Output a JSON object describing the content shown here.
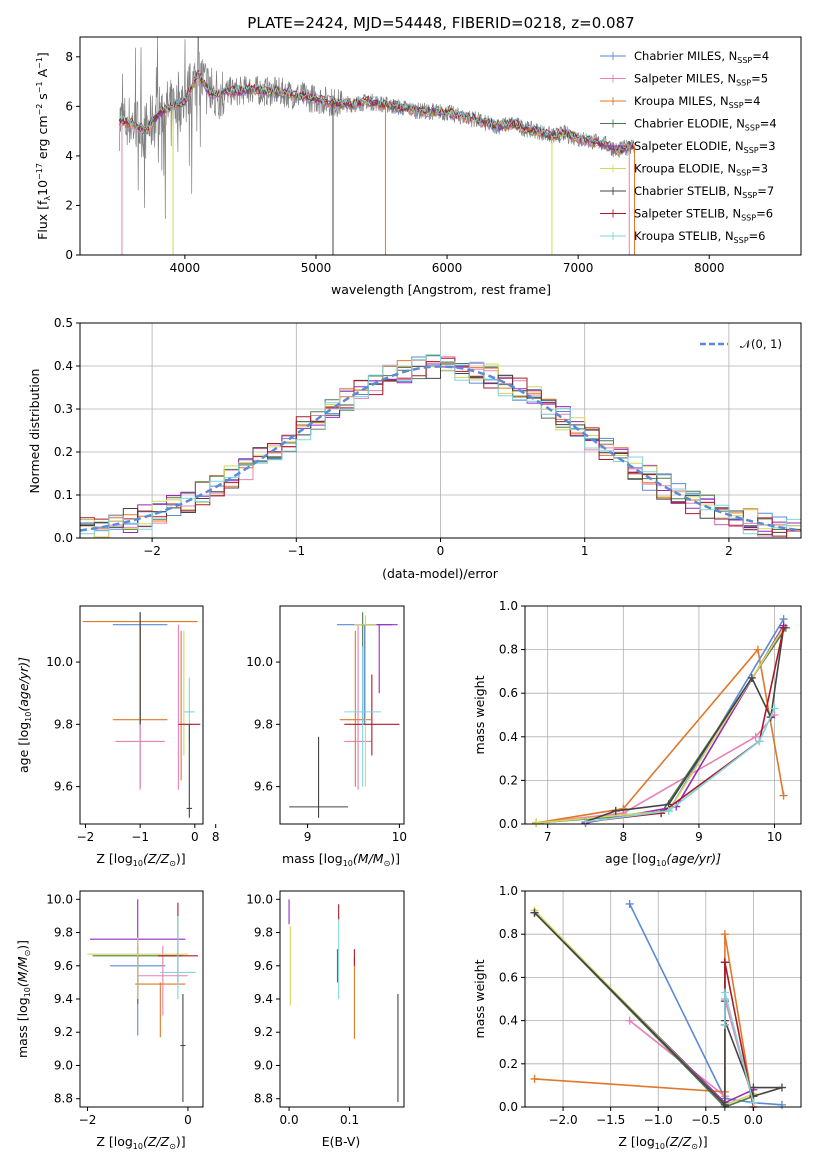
{
  "colors": [
    "#5b8ad6",
    "#e880b6",
    "#e0772a",
    "#4c7a4c",
    "#9a28c0",
    "#d4d85a",
    "#444444",
    "#a81c28",
    "#80d4dc"
  ],
  "chart_data": [
    {
      "id": "spectrum",
      "type": "line",
      "title": "PLATE=2424, MJD=54448, FIBERID=0218, z=0.087",
      "xlabel": "wavelength [Angstrom, rest frame]",
      "ylabel_main": "Flux [f",
      "ylabel_sub": "λ",
      "ylabel_rest": "10",
      "ylabel_exp": "−17",
      "ylabel_unit1": " erg cm",
      "ylabel_exp2": "−2",
      "ylabel_unit2": " s",
      "ylabel_exp3": "−1",
      "ylabel_unit3": " A",
      "ylabel_exp4": "−1",
      "ylabel_end": "]",
      "xlim": [
        3200,
        8700
      ],
      "ylim": [
        0,
        8.8
      ],
      "xticks": [
        "4000",
        "5000",
        "6000",
        "7000",
        "8000"
      ],
      "xtick_values": [
        4000,
        5000,
        6000,
        7000,
        8000
      ],
      "yticks": [
        "0",
        "2",
        "4",
        "6",
        "8"
      ],
      "ytick_values": [
        0,
        2,
        4,
        6,
        8
      ],
      "legend_position": "top-right",
      "legend": [
        {
          "name": "Chabrier MILES",
          "nssp": "4"
        },
        {
          "name": "Salpeter MILES",
          "nssp": "5"
        },
        {
          "name": "Kroupa MILES",
          "nssp": "4"
        },
        {
          "name": "Chabrier ELODIE",
          "nssp": "4"
        },
        {
          "name": "Salpeter ELODIE",
          "nssp": "3"
        },
        {
          "name": "Kroupa ELODIE",
          "nssp": "3"
        },
        {
          "name": "Chabrier STELIB",
          "nssp": "7"
        },
        {
          "name": "Salpeter STELIB",
          "nssp": "6"
        },
        {
          "name": "Kroupa STELIB",
          "nssp": "6"
        }
      ],
      "nssp_label": "N",
      "nssp_sub": "SSP",
      "model_x": [
        3500,
        3600,
        3700,
        3800,
        3900,
        4000,
        4100,
        4200,
        4300,
        4400,
        4500,
        4600,
        4700,
        4800,
        4900,
        5000,
        5100,
        5200,
        5300,
        5400,
        5500,
        5600,
        5700,
        5800,
        5900,
        6000,
        6100,
        6200,
        6300,
        6400,
        6500,
        6600,
        6700,
        6800,
        6900,
        7000,
        7100,
        7200,
        7300,
        7400
      ],
      "model_y": [
        5.4,
        5.3,
        5.0,
        5.7,
        6.0,
        6.2,
        7.3,
        6.5,
        6.6,
        6.6,
        6.7,
        6.6,
        6.6,
        6.5,
        6.4,
        6.3,
        6.2,
        6.1,
        6.1,
        6.2,
        6.1,
        6.0,
        5.9,
        5.8,
        5.8,
        5.75,
        5.6,
        5.5,
        5.3,
        5.2,
        5.3,
        5.1,
        5.0,
        4.8,
        4.9,
        4.7,
        4.6,
        4.5,
        4.2,
        4.4
      ],
      "data_x_range": [
        3500,
        7430
      ],
      "spikes": [
        {
          "x": 3520,
          "ymin": 0,
          "color": 1
        },
        {
          "x": 3910,
          "ymin": 0,
          "color": 5
        },
        {
          "x": 5130,
          "ymin": 0,
          "color": 6
        },
        {
          "x": 5530,
          "ymin": 0,
          "color": 2
        },
        {
          "x": 6800,
          "ymin": 0,
          "color": 5
        },
        {
          "x": 7390,
          "ymin": 0,
          "color": 1
        },
        {
          "x": 7430,
          "ymin": 0,
          "color": 2
        }
      ]
    },
    {
      "id": "residuals",
      "type": "line",
      "xlabel": "(data-model)/error",
      "ylabel": "Normed distribution",
      "xlim": [
        -2.5,
        2.5
      ],
      "ylim": [
        0,
        0.5
      ],
      "xticks": [
        "−2",
        "−1",
        "0",
        "1",
        "2"
      ],
      "xtick_values": [
        -2,
        -1,
        0,
        1,
        2
      ],
      "yticks": [
        "0.0",
        "0.1",
        "0.2",
        "0.3",
        "0.4",
        "0.5"
      ],
      "ytick_values": [
        0,
        0.1,
        0.2,
        0.3,
        0.4,
        0.5
      ],
      "grid": true,
      "legend_position": "top-right",
      "legend_label": "𝒩(0, 1)",
      "bin_width": 0.1
    },
    {
      "id": "age-vs-Z",
      "type": "scatter",
      "xlabel": "Z [log",
      "xlabel_sub": "10",
      "xlabel_rest": "(Z/Z",
      "xlabel_sun": "⊙",
      "xlabel_end": ")]",
      "ylabel": "age  [log",
      "ylabel_sub": "10",
      "ylabel_rest": "(age/yr)]",
      "xlim": [
        -2.1,
        0.15
      ],
      "ylim": [
        9.48,
        10.18
      ],
      "xticks": [
        "−2",
        "−1",
        "0"
      ],
      "xtick_values": [
        -2,
        -1,
        0
      ],
      "yticks": [
        "9.6",
        "9.8",
        "10.0"
      ],
      "ytick_values": [
        9.6,
        9.8,
        10.0
      ],
      "points": [
        {
          "c": 0,
          "x": -1.0,
          "y": 10.12,
          "xe": 0.5,
          "ye": 0.0,
          "vlo": 9.6,
          "vhi": 10.12
        },
        {
          "c": 1,
          "x": -1.0,
          "y": 9.745,
          "xe": 0.45,
          "ye": 0.0,
          "vlo": 9.59,
          "vhi": 10.12
        },
        {
          "c": 2,
          "x": -1.0,
          "y": 10.13,
          "xe": 1.05,
          "ye": 0.0,
          "vlo": 9.81,
          "vhi": 10.13
        },
        {
          "c": 3,
          "x": -1.0,
          "y": 10.12,
          "xe": 0.0,
          "ye": 0.0,
          "vlo": 9.8,
          "vhi": 10.16
        },
        {
          "c": 2,
          "x": -1.0,
          "y": 9.815,
          "xe": 0.5,
          "ye": 0.0,
          "vlo": 9.81,
          "vhi": 9.82
        },
        {
          "c": 1,
          "x": -0.3,
          "y": 9.745,
          "xe": 0.0,
          "ye": 0.0,
          "vlo": 9.59,
          "vhi": 10.12
        },
        {
          "c": 5,
          "x": -0.2,
          "y": 9.745,
          "xe": 0.0,
          "ye": 0.0,
          "vlo": 9.7,
          "vhi": 10.1
        },
        {
          "c": 2,
          "x": -0.25,
          "y": 9.745,
          "xe": 0.0,
          "ye": 0.0,
          "vlo": 9.62,
          "vhi": 10.1
        },
        {
          "c": 8,
          "x": -0.1,
          "y": 9.84,
          "xe": 0.1,
          "ye": 0.0,
          "vlo": 9.75,
          "vhi": 9.95
        },
        {
          "c": 7,
          "x": -0.1,
          "y": 9.8,
          "xe": 0.2,
          "ye": 0.0,
          "vlo": 9.8,
          "vhi": 9.8
        },
        {
          "c": 6,
          "x": -0.1,
          "y": 9.53,
          "xe": 0.05,
          "ye": 0.0,
          "vlo": 9.5,
          "vhi": 9.8
        },
        {
          "c": 6,
          "x": -1.0,
          "y": 10.13,
          "xe": 0.0,
          "ye": 0.0,
          "vlo": 9.8,
          "vhi": 10.16
        }
      ]
    },
    {
      "id": "age-vs-mass",
      "type": "scatter",
      "xlabel": "mass [log",
      "xlabel_sub": "10",
      "xlabel_rest": "(M/M",
      "xlabel_sun": "⊙",
      "xlabel_end": ")]",
      "xlim": [
        8.7,
        10.05
      ],
      "ylim": [
        9.48,
        10.18
      ],
      "xticks": [
        "8",
        "9",
        "10"
      ],
      "xtick_values": [
        8,
        9,
        10
      ],
      "yticks": [
        "9.6",
        "9.8",
        "10.0"
      ],
      "ytick_values": [
        9.6,
        9.8,
        10.0
      ],
      "points": [
        {
          "c": 6,
          "x": 9.12,
          "y": 9.535,
          "xe": 0.32,
          "vlo": 9.5,
          "vhi": 9.76
        },
        {
          "c": 0,
          "x": 9.62,
          "y": 10.12,
          "xe": 0.3,
          "vlo": 9.8,
          "vhi": 10.12
        },
        {
          "c": 1,
          "x": 9.55,
          "y": 9.745,
          "xe": 0.15,
          "vlo": 9.59,
          "vhi": 10.12
        },
        {
          "c": 2,
          "x": 9.52,
          "y": 9.815,
          "xe": 0.17,
          "vlo": 9.6,
          "vhi": 10.1
        },
        {
          "c": 3,
          "x": 9.6,
          "y": 10.12,
          "xe": 0.0,
          "vlo": 9.8,
          "vhi": 10.16
        },
        {
          "c": 4,
          "x": 9.78,
          "y": 10.12,
          "xe": 0.2,
          "vlo": 9.9,
          "vhi": 10.12
        },
        {
          "c": 5,
          "x": 9.63,
          "y": 10.12,
          "xe": 0.12,
          "vlo": 9.6,
          "vhi": 10.15
        },
        {
          "c": 7,
          "x": 9.7,
          "y": 9.8,
          "xe": 0.3,
          "vlo": 9.7,
          "vhi": 9.96
        },
        {
          "c": 8,
          "x": 9.6,
          "y": 9.84,
          "xe": 0.2,
          "vlo": 9.6,
          "vhi": 10.05
        }
      ]
    },
    {
      "id": "weight-vs-age",
      "type": "line",
      "xlabel": "age  [log",
      "xlabel_sub": "10",
      "xlabel_rest": "(age/yr)]",
      "ylabel": "mass weight",
      "xlim": [
        6.7,
        10.35
      ],
      "ylim": [
        0,
        1.0
      ],
      "xticks": [
        "7",
        "8",
        "9",
        "10"
      ],
      "xtick_values": [
        7,
        8,
        9,
        10
      ],
      "yticks": [
        "0.0",
        "0.2",
        "0.4",
        "0.6",
        "0.8",
        "1.0"
      ],
      "ytick_values": [
        0,
        0.2,
        0.4,
        0.6,
        0.8,
        1.0
      ],
      "grid": true,
      "series": [
        {
          "c": 0,
          "x": [
            6.85,
            8.6,
            10.12
          ],
          "y": [
            0.005,
            0.06,
            0.94
          ]
        },
        {
          "c": 1,
          "x": [
            6.85,
            8.0,
            9.75,
            10.0
          ],
          "y": [
            0.005,
            0.05,
            0.4,
            0.5
          ]
        },
        {
          "c": 2,
          "x": [
            6.85,
            8.0,
            9.78,
            10.12
          ],
          "y": [
            0.005,
            0.07,
            0.8,
            0.13
          ]
        },
        {
          "c": 3,
          "x": [
            6.85,
            8.5,
            10.15
          ],
          "y": [
            0.005,
            0.05,
            0.9
          ]
        },
        {
          "c": 4,
          "x": [
            7.5,
            8.7,
            10.12
          ],
          "y": [
            0.005,
            0.08,
            0.91
          ]
        },
        {
          "c": 5,
          "x": [
            6.85,
            8.6,
            10.12
          ],
          "y": [
            0.005,
            0.06,
            0.9
          ]
        },
        {
          "c": 6,
          "x": [
            7.5,
            7.9,
            8.6,
            9.7,
            9.95,
            10.12
          ],
          "y": [
            0.01,
            0.06,
            0.09,
            0.67,
            0.49,
            0.9
          ]
        },
        {
          "c": 7,
          "x": [
            7.5,
            8.5,
            9.8,
            10.12
          ],
          "y": [
            0.01,
            0.05,
            0.38,
            0.9
          ]
        },
        {
          "c": 8,
          "x": [
            7.5,
            8.6,
            9.8,
            10.0
          ],
          "y": [
            0.01,
            0.06,
            0.38,
            0.53
          ]
        }
      ]
    },
    {
      "id": "mass-vs-Z",
      "type": "scatter",
      "xlabel": "Z [log",
      "xlabel_sub": "10",
      "xlabel_rest": "(Z/Z",
      "xlabel_sun": "⊙",
      "xlabel_end": ")]",
      "ylabel": "mass [log",
      "ylabel_sub": "10",
      "ylabel_rest": "(M/M",
      "ylabel_sun": "⊙",
      "ylabel_end": ")]",
      "xlim": [
        -2.15,
        0.3
      ],
      "ylim": [
        8.75,
        10.05
      ],
      "xticks": [
        "−2",
        "0"
      ],
      "xtick_values": [
        -2,
        0
      ],
      "yticks": [
        "8.8",
        "9.0",
        "9.2",
        "9.4",
        "9.6",
        "9.8",
        "10.0"
      ],
      "ytick_values": [
        8.8,
        9.0,
        9.2,
        9.4,
        9.6,
        9.8,
        10.0
      ],
      "points": [
        {
          "c": 0,
          "x": -1.0,
          "y": 9.6,
          "xe": 0.55,
          "vlo": 9.18,
          "vhi": 9.65
        },
        {
          "c": 1,
          "x": -0.5,
          "y": 9.54,
          "xe": 0.5,
          "vlo": 9.3,
          "vhi": 9.72
        },
        {
          "c": 2,
          "x": -0.55,
          "y": 9.49,
          "xe": 0.5,
          "vlo": 9.17,
          "vhi": 9.5
        },
        {
          "c": 3,
          "x": -1.0,
          "y": 9.66,
          "xe": 0.9,
          "vlo": 9.37,
          "vhi": 9.72
        },
        {
          "c": 4,
          "x": -1.0,
          "y": 9.76,
          "xe": 0.95,
          "vlo": 9.45,
          "vhi": 10.0
        },
        {
          "c": 5,
          "x": -1.0,
          "y": 9.67,
          "xe": 1.0,
          "vlo": 9.4,
          "vhi": 9.77
        },
        {
          "c": 7,
          "x": -0.2,
          "y": 9.66,
          "xe": 0.4,
          "vlo": 9.5,
          "vhi": 9.98
        },
        {
          "c": 8,
          "x": -0.2,
          "y": 9.56,
          "xe": 0.35,
          "vlo": 9.4,
          "vhi": 9.9
        },
        {
          "c": 6,
          "x": -0.1,
          "y": 9.12,
          "xe": 0.05,
          "vlo": 8.78,
          "vhi": 9.43
        }
      ]
    },
    {
      "id": "mass-vs-EBV",
      "type": "scatter",
      "xlabel": "E(B-V)",
      "xlim": [
        -0.015,
        0.19
      ],
      "ylim": [
        8.75,
        10.05
      ],
      "xticks": [
        "0.0",
        "0.1"
      ],
      "xtick_values": [
        0,
        0.1
      ],
      "yticks": [
        "8.8",
        "9.0",
        "9.2",
        "9.4",
        "9.6",
        "9.8",
        "10.0"
      ],
      "ytick_values": [
        8.8,
        9.0,
        9.2,
        9.4,
        9.6,
        9.8,
        10.0
      ],
      "points": [
        {
          "c": 4,
          "x": 0.0,
          "vlo": 9.85,
          "vhi": 10.0
        },
        {
          "c": 5,
          "x": 0.002,
          "vlo": 9.36,
          "vhi": 9.84
        },
        {
          "c": 3,
          "x": 0.08,
          "vlo": 9.5,
          "vhi": 9.7
        },
        {
          "c": 8,
          "x": 0.082,
          "vlo": 9.4,
          "vhi": 9.9
        },
        {
          "c": 7,
          "x": 0.082,
          "vlo": 9.88,
          "vhi": 9.97
        },
        {
          "c": 2,
          "x": 0.108,
          "vlo": 9.16,
          "vhi": 9.65
        },
        {
          "c": 7,
          "x": 0.108,
          "vlo": 9.6,
          "vhi": 9.7
        },
        {
          "c": 6,
          "x": 0.18,
          "vlo": 8.78,
          "vhi": 9.43
        }
      ]
    },
    {
      "id": "weight-vs-Z",
      "type": "line",
      "xlabel": "Z [log",
      "xlabel_sub": "10",
      "xlabel_rest": "(Z/Z",
      "xlabel_sun": "⊙",
      "xlabel_end": ")]",
      "ylabel": "mass weight",
      "xlim": [
        -2.4,
        0.5
      ],
      "ylim": [
        0,
        1.0
      ],
      "xticks": [
        "−2.0",
        "−1.5",
        "−1.0",
        "−0.5",
        "0.0"
      ],
      "xtick_values": [
        -2.0,
        -1.5,
        -1.0,
        -0.5,
        0.0
      ],
      "yticks": [
        "0.0",
        "0.2",
        "0.4",
        "0.6",
        "0.8",
        "1.0"
      ],
      "ytick_values": [
        0,
        0.2,
        0.4,
        0.6,
        0.8,
        1.0
      ],
      "grid": true,
      "series": [
        {
          "c": 0,
          "x": [
            -1.3,
            -0.3,
            0.0,
            0.3
          ],
          "y": [
            0.94,
            0.04,
            0.02,
            0.01
          ]
        },
        {
          "c": 1,
          "x": [
            -1.3,
            -0.3,
            -0.3,
            0.0
          ],
          "y": [
            0.4,
            0.05,
            0.5,
            0.02
          ]
        },
        {
          "c": 2,
          "x": [
            -2.3,
            -0.3,
            -0.3,
            0.0,
            0.0
          ],
          "y": [
            0.13,
            0.07,
            0.8,
            0.0,
            0.06
          ]
        },
        {
          "c": 3,
          "x": [
            -2.3,
            -0.3,
            0.0
          ],
          "y": [
            0.9,
            0.0,
            0.05
          ]
        },
        {
          "c": 4,
          "x": [
            -2.3,
            -0.3,
            0.0
          ],
          "y": [
            0.9,
            0.02,
            0.08
          ]
        },
        {
          "c": 5,
          "x": [
            -2.3,
            -0.3,
            0.0
          ],
          "y": [
            0.91,
            0.01,
            0.06
          ]
        },
        {
          "c": 6,
          "x": [
            -2.3,
            -0.3,
            -0.3,
            -0.3,
            -0.3,
            0.0,
            0.3,
            0.0
          ],
          "y": [
            0.9,
            0.01,
            0.67,
            0.49,
            0.4,
            0.05,
            0.09,
            0.09
          ]
        },
        {
          "c": 7,
          "x": [
            -0.3,
            -0.3,
            0.0
          ],
          "y": [
            0.38,
            0.67,
            0.0
          ]
        },
        {
          "c": 8,
          "x": [
            -0.3,
            -0.3,
            0.0
          ],
          "y": [
            0.38,
            0.53,
            0.02
          ]
        }
      ]
    }
  ]
}
